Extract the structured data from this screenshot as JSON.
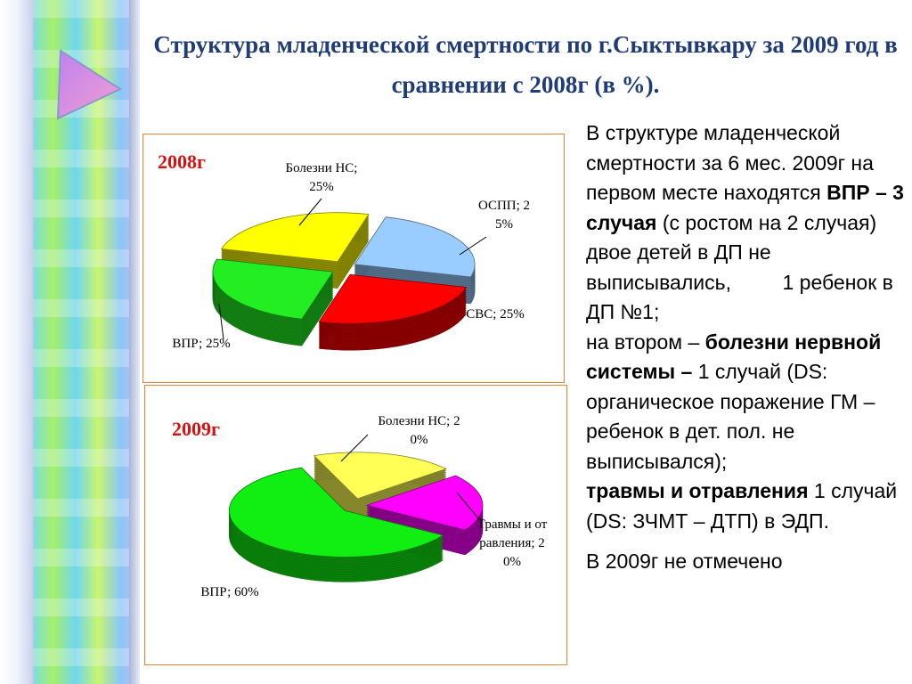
{
  "title": "Структура младенческой смертности по г.Сыктывкару за 2009 год в сравнении с 2008г (в %).",
  "chart_data": [
    {
      "type": "pie",
      "title": "2008г",
      "values": [
        25,
        25,
        25,
        25
      ],
      "value_labels": [
        "Болезни НС; 25%",
        "ОСПП; 25%",
        "СВС; 25%",
        "ВПР; 25%"
      ],
      "colors": [
        "#ffff00",
        "#99ccff",
        "#ff0000",
        "#22ee22"
      ]
    },
    {
      "type": "pie",
      "title": "2009г",
      "values": [
        20,
        20,
        60
      ],
      "value_labels": [
        "Болезни НС; 20%",
        "Травмы и отравления; 20%",
        "ВПР; 60%"
      ],
      "colors": [
        "#ffff55",
        "#ff00ff",
        "#11ee11"
      ]
    }
  ],
  "body": [
    [
      [
        {
          "text": "В структуре младенческой смертности за 6 мес. 2009г на первом месте находятся ",
          "bold": false
        },
        {
          "text": "ВПР – 3 случая",
          "bold": true
        },
        {
          "text": " (с ростом на 2 случая) двое детей в ДП не выписывались,         1 ребенок в ДП №1;",
          "bold": false
        }
      ],
      [
        {
          "text": "на втором – ",
          "bold": false
        },
        {
          "text": "болезни нервной системы –",
          "bold": true
        },
        {
          "text": " 1 случай (DS: органическое поражение ГМ – ребенок в дет. пол. не выписывался);",
          "bold": false
        }
      ],
      [
        {
          "text": "травмы и отравления",
          "bold": true
        },
        {
          "text": " 1 случай (DS: ЗЧМТ – ДТП) в ЭДП.",
          "bold": false
        }
      ]
    ],
    [
      [
        {
          "text": "В 2009г не отмечено",
          "bold": false
        }
      ]
    ]
  ]
}
